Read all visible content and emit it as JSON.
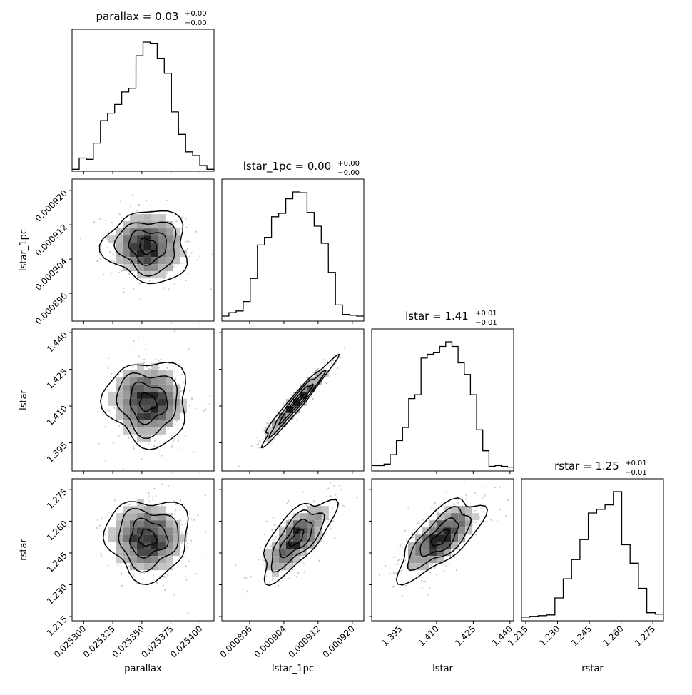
{
  "chart_data": {
    "type": "corner",
    "parameters": [
      {
        "name": "parallax",
        "xlabel": "parallax",
        "ylabel": "",
        "title_main": "parallax = 0.03",
        "title_sup": "+0.00",
        "title_sub": "−0.00",
        "range": [
          0.02529,
          0.025412
        ],
        "ticks": [
          0.0253,
          0.025325,
          0.02535,
          0.025375,
          0.0254
        ],
        "tick_labels": [
          "0.025300",
          "0.025325",
          "0.025350",
          "0.025375",
          "0.025400"
        ],
        "hist": [
          1,
          10,
          9,
          22,
          40,
          46,
          53,
          63,
          66,
          92,
          103,
          102,
          90,
          78,
          47,
          29,
          15,
          12,
          4,
          1
        ],
        "median": 0.025355,
        "sd": 1.6e-05
      },
      {
        "name": "lstar_1pc",
        "xlabel": "lstar_1pc",
        "ylabel": "lstar_1pc",
        "title_main": "lstar_1pc = 0.00",
        "title_sup": "+0.00",
        "title_sub": "−0.00",
        "range": [
          0.0008895,
          0.0009227
        ],
        "ticks": [
          0.000896,
          0.000904,
          0.000912,
          0.00092
        ],
        "tick_labels": [
          "0.000896",
          "0.000904",
          "0.000912",
          "0.000920"
        ],
        "hist": [
          5,
          9,
          11,
          22,
          49,
          88,
          97,
          121,
          125,
          142,
          150,
          149,
          126,
          110,
          90,
          56,
          18,
          7,
          6,
          5
        ],
        "median": 0.000907,
        "sd": 3.8e-06
      },
      {
        "name": "lstar",
        "xlabel": "lstar",
        "ylabel": "lstar",
        "title_main": "lstar = 1.41",
        "title_sup": "+0.01",
        "title_sub": "−0.01",
        "range": [
          1.3835,
          1.4415
        ],
        "ticks": [
          1.395,
          1.41,
          1.425,
          1.44
        ],
        "tick_labels": [
          "1.395",
          "1.410",
          "1.425",
          "1.440"
        ],
        "hist": [
          6,
          6,
          8,
          20,
          38,
          55,
          92,
          97,
          144,
          149,
          151,
          159,
          165,
          159,
          138,
          123,
          97,
          52,
          25,
          5,
          6,
          5,
          4
        ],
        "median": 1.4115,
        "sd": 0.0078
      },
      {
        "name": "rstar",
        "xlabel": "rstar",
        "ylabel": "rstar",
        "title_main": "rstar = 1.25",
        "title_sup": "+0.01",
        "title_sub": "−0.01",
        "range": [
          1.213,
          1.28
        ],
        "ticks": [
          1.215,
          1.23,
          1.245,
          1.26,
          1.275
        ],
        "tick_labels": [
          "1.215",
          "1.230",
          "1.245",
          "1.260",
          "1.275"
        ],
        "hist": [
          4,
          5,
          6,
          7,
          30,
          56,
          82,
          109,
          145,
          150,
          156,
          174,
          102,
          77,
          43,
          10,
          8
        ],
        "median": 1.252,
        "sd": 0.0085
      }
    ],
    "correlations": [
      [
        0,
        1,
        -0.05
      ],
      [
        0,
        2,
        -0.05
      ],
      [
        1,
        2,
        0.97
      ],
      [
        0,
        3,
        0.0
      ],
      [
        1,
        3,
        0.7
      ],
      [
        2,
        3,
        0.7
      ]
    ]
  }
}
